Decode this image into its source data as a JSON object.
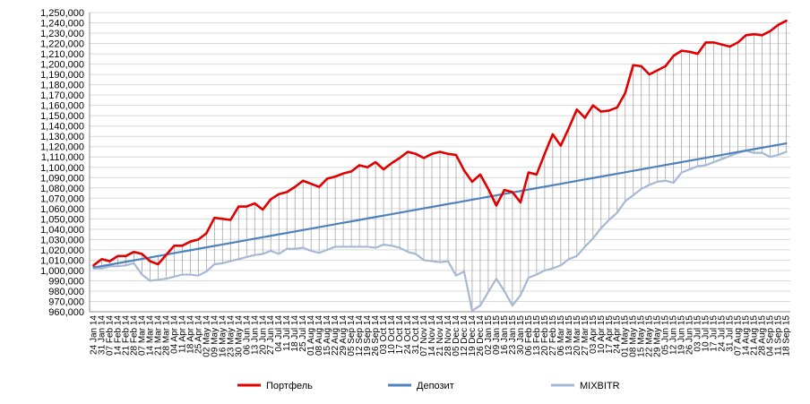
{
  "chart_data": {
    "type": "line",
    "ylim": [
      960000,
      1250000
    ],
    "y_ticks": [
      960000,
      970000,
      980000,
      990000,
      1000000,
      1010000,
      1020000,
      1030000,
      1040000,
      1050000,
      1060000,
      1070000,
      1080000,
      1090000,
      1100000,
      1110000,
      1120000,
      1130000,
      1140000,
      1150000,
      1160000,
      1170000,
      1180000,
      1190000,
      1200000,
      1210000,
      1220000,
      1230000,
      1240000,
      1250000
    ],
    "y_tick_labels": [
      "960,000",
      "970,000",
      "980,000",
      "990,000",
      "1,000,000",
      "1,010,000",
      "1,020,000",
      "1,030,000",
      "1,040,000",
      "1,050,000",
      "1,060,000",
      "1,070,000",
      "1,080,000",
      "1,090,000",
      "1,100,000",
      "1,110,000",
      "1,120,000",
      "1,130,000",
      "1,140,000",
      "1,150,000",
      "1,160,000",
      "1,170,000",
      "1,180,000",
      "1,190,000",
      "1,200,000",
      "1,210,000",
      "1,220,000",
      "1,230,000",
      "1,240,000",
      "1,250,000"
    ],
    "categories": [
      "24 Jan 14",
      "31 Jan 14",
      "07 Feb 14",
      "14 Feb 14",
      "21 Feb 14",
      "28 Feb 14",
      "07 Mar 14",
      "14 Mar 14",
      "21 Mar 14",
      "28 Mar 14",
      "04 Apr 14",
      "11 Apr 14",
      "18 Apr 14",
      "25 Apr 14",
      "02 May 14",
      "09 May 14",
      "16 May 14",
      "23 May 14",
      "30 May 14",
      "06 Jun 14",
      "13 Jun 14",
      "20 Jun 14",
      "27 Jun 14",
      "04 Jul 14",
      "11 Jul 14",
      "18 Jul 14",
      "25 Jul 14",
      "01 Aug 14",
      "08 Aug 14",
      "15 Aug 14",
      "22 Aug 14",
      "29 Aug 14",
      "05 Sep 14",
      "12 Sep 14",
      "19 Sep 14",
      "26 Sep 14",
      "03 Oct 14",
      "10 Oct 14",
      "17 Oct 14",
      "24 Oct 14",
      "31 Oct 14",
      "07 Nov 14",
      "14 Nov 14",
      "21 Nov 14",
      "28 Nov 14",
      "05 Dec 14",
      "12 Dec 14",
      "19 Dec 14",
      "26 Dec 14",
      "02 Jan 15",
      "09 Jan 15",
      "16 Jan 15",
      "23 Jan 15",
      "30 Jan 15",
      "06 Feb 15",
      "13 Feb 15",
      "20 Feb 15",
      "27 Feb 15",
      "06 Mar 15",
      "13 Mar 15",
      "20 Mar 15",
      "27 Mar 15",
      "03 Apr 15",
      "10 Apr 15",
      "17 Apr 15",
      "24 Apr 15",
      "01 May 15",
      "08 May 15",
      "15 May 15",
      "22 May 15",
      "29 May 15",
      "05 Jun 15",
      "12 Jun 15",
      "19 Jun 15",
      "26 Jun 15",
      "03 Jul 15",
      "10 Jul 15",
      "17 Jul 15",
      "24 Jul 15",
      "31 Jul 15",
      "07 Aug 15",
      "14 Aug 15",
      "21 Aug 15",
      "28 Aug 15",
      "04 Sep 15",
      "11 Sep 15",
      "18 Sep 15"
    ],
    "series": [
      {
        "name": "Портфель",
        "color": "#e00000",
        "values": [
          1005000,
          1011000,
          1009000,
          1014000,
          1014000,
          1018000,
          1016000,
          1009000,
          1006000,
          1015000,
          1024000,
          1024000,
          1028000,
          1030000,
          1036000,
          1051000,
          1050000,
          1049000,
          1062000,
          1062000,
          1065000,
          1059000,
          1069000,
          1074000,
          1076000,
          1081000,
          1087000,
          1084000,
          1081000,
          1089000,
          1091000,
          1094000,
          1096000,
          1102000,
          1100000,
          1105000,
          1098000,
          1104000,
          1109000,
          1115000,
          1113000,
          1109000,
          1113000,
          1115000,
          1113000,
          1112000,
          1097000,
          1086000,
          1093000,
          1079000,
          1063000,
          1078000,
          1076000,
          1066000,
          1095000,
          1093000,
          1113000,
          1132000,
          1121000,
          1138000,
          1156000,
          1148000,
          1160000,
          1154000,
          1155000,
          1158000,
          1172000,
          1199000,
          1198000,
          1190000,
          1194000,
          1198000,
          1208000,
          1213000,
          1212000,
          1210000,
          1221000,
          1221000,
          1219000,
          1217000,
          1221000,
          1228000,
          1229000,
          1228000,
          1232000,
          1238000,
          1242000
        ]
      },
      {
        "name": "Депозит",
        "color": "#4f81bd",
        "values": [
          1003000,
          1004200,
          1005600,
          1007000,
          1008400,
          1009800,
          1011200,
          1012600,
          1014000,
          1015400,
          1016800,
          1018200,
          1019600,
          1021000,
          1022400,
          1023800,
          1025200,
          1026600,
          1028000,
          1029400,
          1030800,
          1032200,
          1033600,
          1035000,
          1036400,
          1037800,
          1039200,
          1040600,
          1042000,
          1043400,
          1044800,
          1046200,
          1047600,
          1049000,
          1050400,
          1051800,
          1053200,
          1054600,
          1056000,
          1057400,
          1058800,
          1060200,
          1061600,
          1063000,
          1064400,
          1065800,
          1067200,
          1068600,
          1070000,
          1071400,
          1072800,
          1074200,
          1075600,
          1077000,
          1078400,
          1079800,
          1081200,
          1082600,
          1084000,
          1085400,
          1086800,
          1088200,
          1089600,
          1091000,
          1092400,
          1093800,
          1095200,
          1096600,
          1098000,
          1099400,
          1100800,
          1102200,
          1103600,
          1105000,
          1106400,
          1107800,
          1109200,
          1110600,
          1112000,
          1113400,
          1114800,
          1116200,
          1117600,
          1119000,
          1120400,
          1121800,
          1123200
        ]
      },
      {
        "name": "MIXBITR",
        "color": "#a6b8d4",
        "values": [
          1002000,
          1002000,
          1004000,
          1004000,
          1005000,
          1007000,
          996000,
          990000,
          991000,
          992000,
          994000,
          996000,
          996000,
          995000,
          999000,
          1006000,
          1007000,
          1009000,
          1011000,
          1013000,
          1015000,
          1016000,
          1019000,
          1016000,
          1021000,
          1021000,
          1022000,
          1019000,
          1017000,
          1020000,
          1023000,
          1023000,
          1023000,
          1023000,
          1023000,
          1022000,
          1025000,
          1024000,
          1022000,
          1018000,
          1016000,
          1010000,
          1009000,
          1008000,
          1009000,
          995000,
          999000,
          961000,
          966000,
          979000,
          992000,
          980000,
          966000,
          976000,
          993000,
          996000,
          1000000,
          1002000,
          1005000,
          1011000,
          1014000,
          1023000,
          1031000,
          1041000,
          1049000,
          1056000,
          1067000,
          1073000,
          1079000,
          1083000,
          1086000,
          1087000,
          1085000,
          1095000,
          1098000,
          1101000,
          1102000,
          1105000,
          1108000,
          1111000,
          1114000,
          1116000,
          1114000,
          1114000,
          1110000,
          1112000,
          1115000
        ]
      }
    ],
    "grid": true,
    "drop_lines": true,
    "legend": "bottom"
  }
}
